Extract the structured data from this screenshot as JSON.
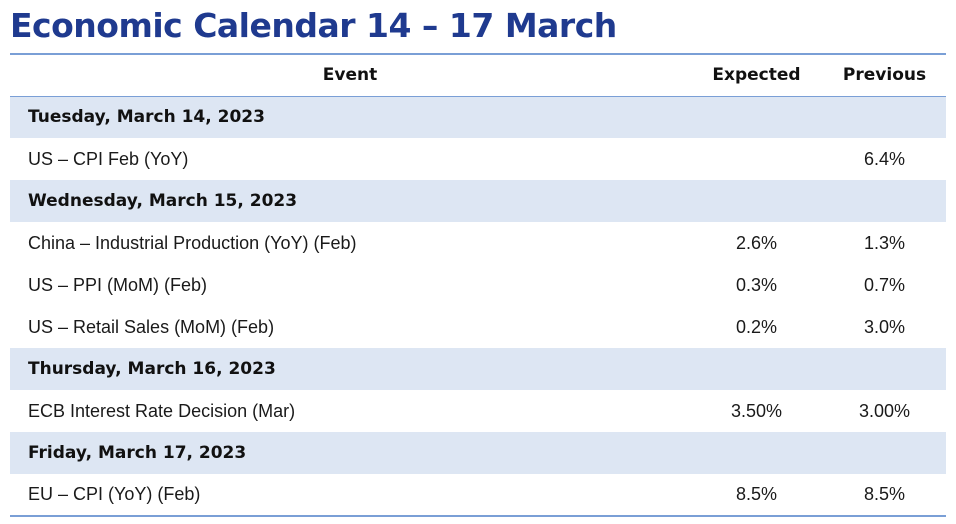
{
  "title": "Economic Calendar 14 – 17 March",
  "headers": {
    "event": "Event",
    "expected": "Expected",
    "previous": "Previous"
  },
  "days": [
    {
      "label": "Tuesday, March 14, 2023",
      "events": [
        {
          "event": "US – CPI Feb (YoY)",
          "expected": "",
          "previous": "6.4%"
        }
      ]
    },
    {
      "label": "Wednesday, March 15, 2023",
      "events": [
        {
          "event": "China – Industrial Production (YoY) (Feb)",
          "expected": "2.6%",
          "previous": "1.3%"
        },
        {
          "event": "US – PPI (MoM) (Feb)",
          "expected": "0.3%",
          "previous": "0.7%"
        },
        {
          "event": "US – Retail Sales (MoM) (Feb)",
          "expected": "0.2%",
          "previous": "3.0%"
        }
      ]
    },
    {
      "label": "Thursday, March 16, 2023",
      "events": [
        {
          "event": "ECB Interest Rate Decision (Mar)",
          "expected": "3.50%",
          "previous": "3.00%"
        }
      ]
    },
    {
      "label": "Friday, March 17, 2023",
      "events": [
        {
          "event": "EU – CPI (YoY) (Feb)",
          "expected": "8.5%",
          "previous": "8.5%"
        }
      ]
    }
  ],
  "colors": {
    "title": "#1f3a8f",
    "rule": "#7a9fd6",
    "day_band": "#dde6f3"
  }
}
